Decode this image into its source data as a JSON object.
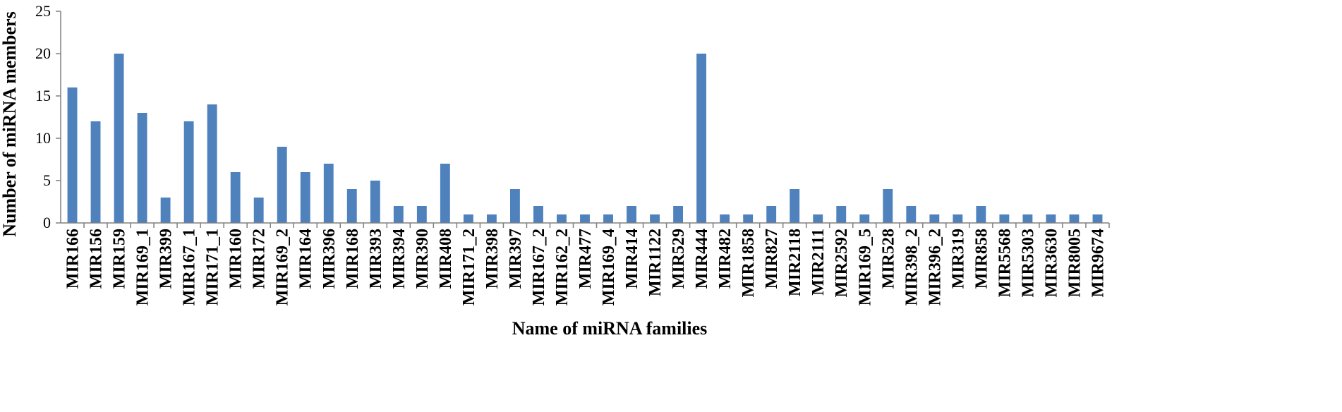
{
  "chart_data": {
    "type": "bar",
    "xlabel": "Name of miRNA families",
    "ylabel": "Number of  miRNA members",
    "ylim": [
      0,
      25
    ],
    "yticks": [
      0,
      5,
      10,
      15,
      20,
      25
    ],
    "grid": false,
    "legend": "none",
    "bar_color": "#4f81bd",
    "categories": [
      "MIR166",
      "MIR156",
      "MIR159",
      "MIR169_1",
      "MIR399",
      "MIR167_1",
      "MIR171_1",
      "MIR160",
      "MIR172",
      "MIR169_2",
      "MIR164",
      "MIR396",
      "MIR168",
      "MIR393",
      "MIR394",
      "MIR390",
      "MIR408",
      "MIR171_2",
      "MIR398",
      "MIR397",
      "MIR167_2",
      "MIR162_2",
      "MIR477",
      "MIR169_4",
      "MIR414",
      "MIR1122",
      "MIR529",
      "MIR444",
      "MIR482",
      "MIR1858",
      "MIR827",
      "MIR2118",
      "MIR2111",
      "MIR2592",
      "MIR169_5",
      "MIR528",
      "MIR398_2",
      "MIR396_2",
      "MIR319",
      "MIR858",
      "MIR5568",
      "MIR5303",
      "MIR3630",
      "MIR8005",
      "MIR9674"
    ],
    "values": [
      16,
      12,
      20,
      13,
      3,
      12,
      14,
      6,
      3,
      9,
      6,
      7,
      4,
      5,
      2,
      2,
      7,
      1,
      1,
      4,
      2,
      1,
      1,
      1,
      2,
      1,
      2,
      20,
      1,
      1,
      2,
      4,
      1,
      2,
      1,
      4,
      2,
      1,
      1,
      2,
      1,
      1,
      1,
      1,
      1
    ]
  }
}
